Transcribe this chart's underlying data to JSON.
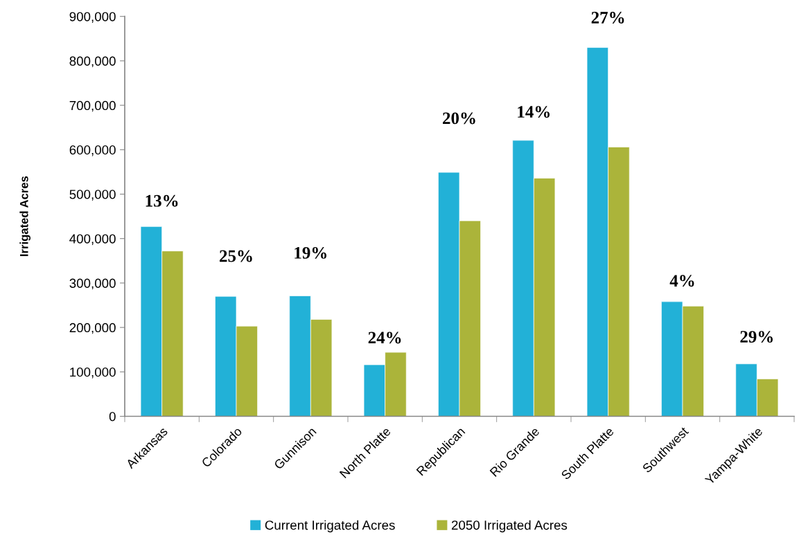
{
  "chart_data": {
    "type": "bar",
    "ylabel": "Irrigated Acres",
    "categories": [
      "Arkansas",
      "Colorado",
      "Gunnison",
      "North Platte",
      "Republican",
      "Rio Grande",
      "South Platte",
      "Southwest",
      "Yampa-White"
    ],
    "series": [
      {
        "name": "Current Irrigated Acres",
        "color": "#22b1d7",
        "values": [
          427000,
          270000,
          271000,
          116000,
          549000,
          621000,
          830000,
          258000,
          118000
        ]
      },
      {
        "name": "2050 Irrigated Acres",
        "color": "#abb43a",
        "values": [
          372000,
          203000,
          218000,
          144000,
          440000,
          536000,
          606000,
          248000,
          84000
        ]
      }
    ],
    "ylim": [
      0,
      900000
    ],
    "yticks": [
      0,
      {
        "value": 100000,
        "label": "100,000"
      },
      {
        "value": 200000,
        "label": "200,000"
      },
      {
        "value": 300000,
        "label": "300,000"
      },
      {
        "value": 400000,
        "label": "400,000"
      },
      {
        "value": 500000,
        "label": "500,000"
      },
      {
        "value": 600000,
        "label": "600,000"
      },
      {
        "value": 700000,
        "label": "700,000"
      },
      {
        "value": 800000,
        "label": "800,000"
      },
      {
        "value": 900000,
        "label": "900,000"
      }
    ],
    "annotations": [
      "13%",
      "25%",
      "19%",
      "24%",
      "20%",
      "14%",
      "27%",
      "4%",
      "29%"
    ],
    "legend": "bottom"
  }
}
